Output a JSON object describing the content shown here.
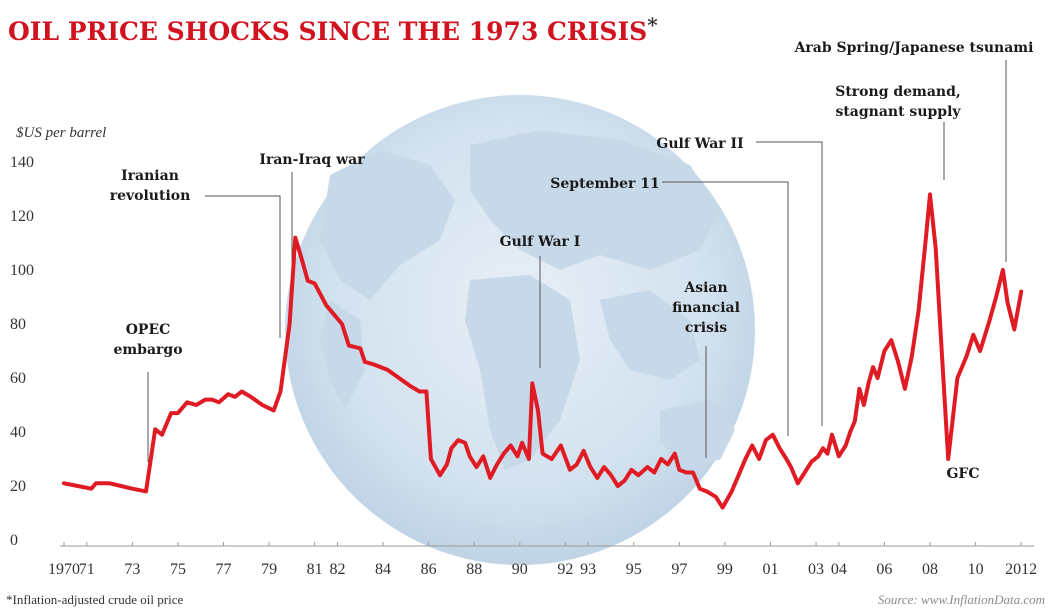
{
  "title": "OIL PRICE SHOCKS SINCE THE 1973 CRISIS",
  "title_mark": "*",
  "footnote": "*Inflation-adjusted crude oil price",
  "source": "Source: www.InflationData.com",
  "colors": {
    "title": "#d1121f",
    "line": "#e01b24",
    "globe": "#c4d6e6",
    "text": "#1a1a1a"
  },
  "chart_data": {
    "type": "line",
    "title": "OIL PRICE SHOCKS SINCE THE 1973 CRISIS",
    "ylabel": "$US per barrel",
    "xlabel": "",
    "ylim": [
      0,
      140
    ],
    "xlim": [
      1970,
      2012.3
    ],
    "yticks": [
      0,
      20,
      40,
      60,
      80,
      100,
      120,
      140
    ],
    "xtick_values": [
      1970,
      1971,
      1973,
      1975,
      1977,
      1979,
      1981,
      1982,
      1984,
      1986,
      1988,
      1990,
      1992,
      1993,
      1995,
      1997,
      1999,
      2001,
      2003,
      2004,
      2006,
      2008,
      2010,
      2012
    ],
    "xtick_labels": [
      "1970",
      "71",
      "73",
      "75",
      "77",
      "79",
      "81",
      "82",
      "84",
      "86",
      "88",
      "90",
      "92",
      "93",
      "95",
      "97",
      "99",
      "01",
      "03",
      "04",
      "06",
      "08",
      "10",
      "2012"
    ],
    "series": [
      {
        "x": [
          1970.0,
          1970.6,
          1971.2,
          1971.4,
          1972.0,
          1972.5,
          1973.0,
          1973.6,
          1974.0,
          1974.3,
          1974.7,
          1975.0,
          1975.4,
          1975.8,
          1976.2,
          1976.5,
          1976.8,
          1977.2,
          1977.5,
          1977.8,
          1978.2,
          1978.7,
          1979.2,
          1979.5,
          1979.9,
          1980.15,
          1980.4,
          1980.7,
          1981.0,
          1981.5,
          1981.8,
          1982.2,
          1982.5,
          1983.0,
          1983.2,
          1983.6,
          1984.2,
          1984.7,
          1985.2,
          1985.6,
          1985.9,
          1986.1,
          1986.5,
          1986.8,
          1987.0,
          1987.3,
          1987.6,
          1987.8,
          1988.1,
          1988.4,
          1988.7,
          1989.0,
          1989.3,
          1989.6,
          1989.9,
          1990.1,
          1990.4,
          1990.55,
          1990.8,
          1991.0,
          1991.4,
          1991.8,
          1992.2,
          1992.5,
          1992.8,
          1993.1,
          1993.4,
          1993.7,
          1994.0,
          1994.3,
          1994.6,
          1994.9,
          1995.2,
          1995.6,
          1995.9,
          1996.2,
          1996.5,
          1996.8,
          1997.0,
          1997.3,
          1997.6,
          1997.9,
          1998.2,
          1998.6,
          1998.9,
          1999.3,
          1999.6,
          1999.9,
          2000.2,
          2000.5,
          2000.8,
          2001.1,
          2001.4,
          2001.7,
          2001.9,
          2002.2,
          2002.5,
          2002.8,
          2003.1,
          2003.3,
          2003.5,
          2003.7,
          2004.0,
          2004.3,
          2004.5,
          2004.7,
          2004.9,
          2005.1,
          2005.3,
          2005.5,
          2005.7,
          2006.0,
          2006.3,
          2006.6,
          2006.9,
          2007.2,
          2007.5,
          2007.8,
          2008.0,
          2008.25,
          2008.5,
          2008.8,
          2009.2,
          2009.6,
          2009.9,
          2010.2,
          2010.6,
          2010.9,
          2011.2,
          2011.4,
          2011.7,
          2012.0
        ],
        "values": [
          21,
          20,
          19,
          21,
          21,
          20,
          19,
          18,
          41,
          39,
          47,
          47,
          51,
          50,
          52,
          52,
          51,
          54,
          53,
          55,
          53,
          50,
          48,
          55,
          80,
          112,
          105,
          96,
          95,
          87,
          84,
          80,
          72,
          71,
          66,
          65,
          63,
          60,
          57,
          55,
          55,
          30,
          24,
          28,
          34,
          37,
          36,
          31,
          27,
          31,
          23,
          28,
          32,
          35,
          31,
          36,
          30,
          58,
          48,
          32,
          30,
          35,
          26,
          28,
          33,
          27,
          23,
          27,
          24,
          20,
          22,
          26,
          24,
          27,
          25,
          30,
          28,
          32,
          26,
          25,
          25,
          19,
          18,
          16,
          12,
          18,
          24,
          30,
          35,
          30,
          37,
          39,
          34,
          30,
          27,
          21,
          25,
          29,
          31,
          34,
          32,
          39,
          31,
          35,
          40,
          44,
          56,
          50,
          58,
          64,
          60,
          70,
          74,
          66,
          56,
          68,
          85,
          110,
          128,
          108,
          72,
          30,
          60,
          68,
          76,
          70,
          81,
          90,
          100,
          88,
          78,
          92
        ]
      }
    ],
    "annotations": [
      {
        "id": "opec",
        "lines": [
          "OPEC",
          "embargo"
        ]
      },
      {
        "id": "iranian",
        "lines": [
          "Iranian",
          "revolution"
        ]
      },
      {
        "id": "iraniraq",
        "lines": [
          "Iran-Iraq war"
        ]
      },
      {
        "id": "gulf1",
        "lines": [
          "Gulf War I"
        ]
      },
      {
        "id": "asian",
        "lines": [
          "Asian",
          "financial",
          "crisis"
        ]
      },
      {
        "id": "sept11",
        "lines": [
          "September 11"
        ]
      },
      {
        "id": "gulf2",
        "lines": [
          "Gulf War II"
        ]
      },
      {
        "id": "strong",
        "lines": [
          "Strong demand,",
          "stagnant supply"
        ]
      },
      {
        "id": "arab",
        "lines": [
          "Arab Spring/Japanese tsunami"
        ]
      },
      {
        "id": "gfc",
        "lines": [
          "GFC"
        ]
      }
    ],
    "grid": false,
    "legend": "none"
  }
}
